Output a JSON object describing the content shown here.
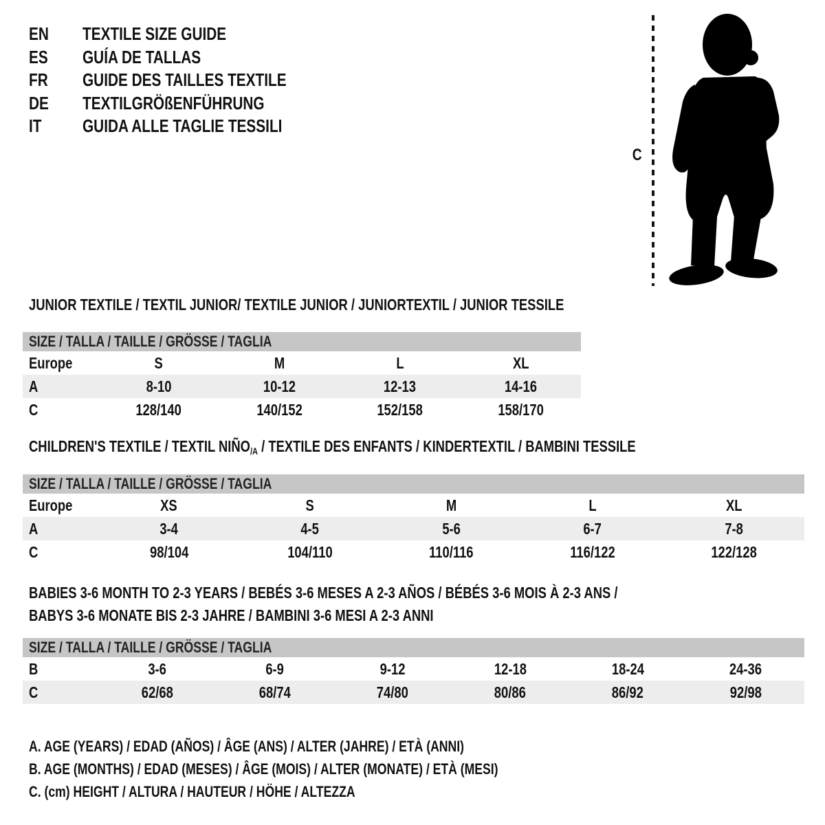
{
  "colors": {
    "background": "#ffffff",
    "text": "#111111",
    "table_header_band": "#c6c6c6",
    "row_stripe": "#ededed",
    "silhouette": "#000000"
  },
  "header": {
    "languages": [
      {
        "code": "EN",
        "title": "TEXTILE SIZE GUIDE"
      },
      {
        "code": "ES",
        "title": "GUÍA DE TALLAS"
      },
      {
        "code": "FR",
        "title": "GUIDE DES TAILLES TEXTILE"
      },
      {
        "code": "DE",
        "title": "TEXTILGRÖßENFÜHRUNG"
      },
      {
        "code": "IT",
        "title": "GUIDA ALLE TAGLIE TESSILI"
      }
    ]
  },
  "figure": {
    "icon": "baby-silhouette-icon",
    "measure_label": "C"
  },
  "sections": [
    {
      "title": "JUNIOR TEXTILE / TEXTIL JUNIOR/ TEXTILE JUNIOR / JUNIORTEXTIL / JUNIOR TESSILE",
      "size_header": "SIZE / TALLA / TAILLE / GRÖSSE / TAGLIA",
      "rows": [
        {
          "label": "Europe",
          "values": [
            "S",
            "M",
            "L",
            "XL"
          ],
          "shaded": false
        },
        {
          "label": "A",
          "values": [
            "8-10",
            "10-12",
            "12-13",
            "14-16"
          ],
          "shaded": true
        },
        {
          "label": "C",
          "values": [
            "128/140",
            "140/152",
            "152/158",
            "158/170"
          ],
          "shaded": false
        }
      ]
    },
    {
      "title_pre": "CHILDREN'S TEXTILE / TEXTIL NIÑO",
      "title_sub": "/A",
      "title_post": " / TEXTILE DES ENFANTS / KINDERTEXTIL / BAMBINI TESSILE",
      "size_header": "SIZE / TALLA / TAILLE / GRÖSSE / TAGLIA",
      "rows": [
        {
          "label": "Europe",
          "values": [
            "XS",
            "S",
            "M",
            "L",
            "XL"
          ],
          "shaded": false
        },
        {
          "label": "A",
          "values": [
            "3-4",
            "4-5",
            "5-6",
            "6-7",
            "7-8"
          ],
          "shaded": true
        },
        {
          "label": "C",
          "values": [
            "98/104",
            "104/110",
            "110/116",
            "116/122",
            "122/128"
          ],
          "shaded": false
        }
      ]
    },
    {
      "title_lines": [
        "BABIES 3-6 MONTH TO 2-3 YEARS / BEBÉS 3-6 MESES A 2-3 AÑOS / BÉBÉS 3-6 MOIS À 2-3 ANS /",
        "BABYS 3-6 MONATE BIS 2-3 JAHRE / BAMBINI 3-6 MESI A 2-3 ANNI"
      ],
      "size_header": "SIZE / TALLA / TAILLE / GRÖSSE / TAGLIA",
      "rows": [
        {
          "label": "B",
          "values": [
            "3-6",
            "6-9",
            "9-12",
            "12-18",
            "18-24",
            "24-36"
          ],
          "shaded": false
        },
        {
          "label": "C",
          "values": [
            "62/68",
            "68/74",
            "74/80",
            "80/86",
            "86/92",
            "92/98"
          ],
          "shaded": true
        }
      ]
    }
  ],
  "legend": [
    "A. AGE (YEARS) / EDAD (AÑOS) / ÂGE (ANS) / ALTER (JAHRE) / ETÀ (ANNI)",
    "B. AGE (MONTHS) / EDAD (MESES) / ÂGE (MOIS) / ALTER (MONATE) / ETÀ (MESI)",
    "C. (cm) HEIGHT / ALTURA / HAUTEUR / HÖHE / ALTEZZA"
  ]
}
